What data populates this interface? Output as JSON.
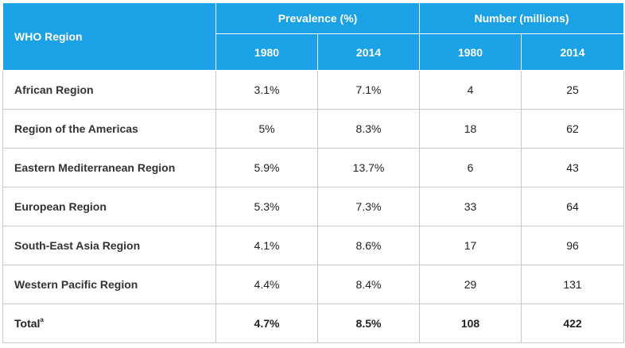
{
  "table": {
    "region_header": "WHO Region",
    "group_headers": [
      "Prevalence (%)",
      "Number (millions)"
    ],
    "year_headers": [
      "1980",
      "2014",
      "1980",
      "2014"
    ],
    "rows": [
      {
        "region": "African Region",
        "values": [
          "3.1%",
          "7.1%",
          "4",
          "25"
        ]
      },
      {
        "region": "Region of the Americas",
        "values": [
          "5%",
          "8.3%",
          "18",
          "62"
        ]
      },
      {
        "region": "Eastern Mediterranean Region",
        "values": [
          "5.9%",
          "13.7%",
          "6",
          "43"
        ]
      },
      {
        "region": "European Region",
        "values": [
          "5.3%",
          "7.3%",
          "33",
          "64"
        ]
      },
      {
        "region": "South-East Asia Region",
        "values": [
          "4.1%",
          "8.6%",
          "17",
          "96"
        ]
      },
      {
        "region": "Western Pacific Region",
        "values": [
          "4.4%",
          "8.4%",
          "29",
          "131"
        ]
      }
    ],
    "total": {
      "label": "Total",
      "footnote": "a",
      "values": [
        "4.7%",
        "8.5%",
        "108",
        "422"
      ]
    }
  },
  "colors": {
    "header_bg": "#1aa1e6",
    "header_text": "#ffffff",
    "border": "#c9c9c9"
  }
}
